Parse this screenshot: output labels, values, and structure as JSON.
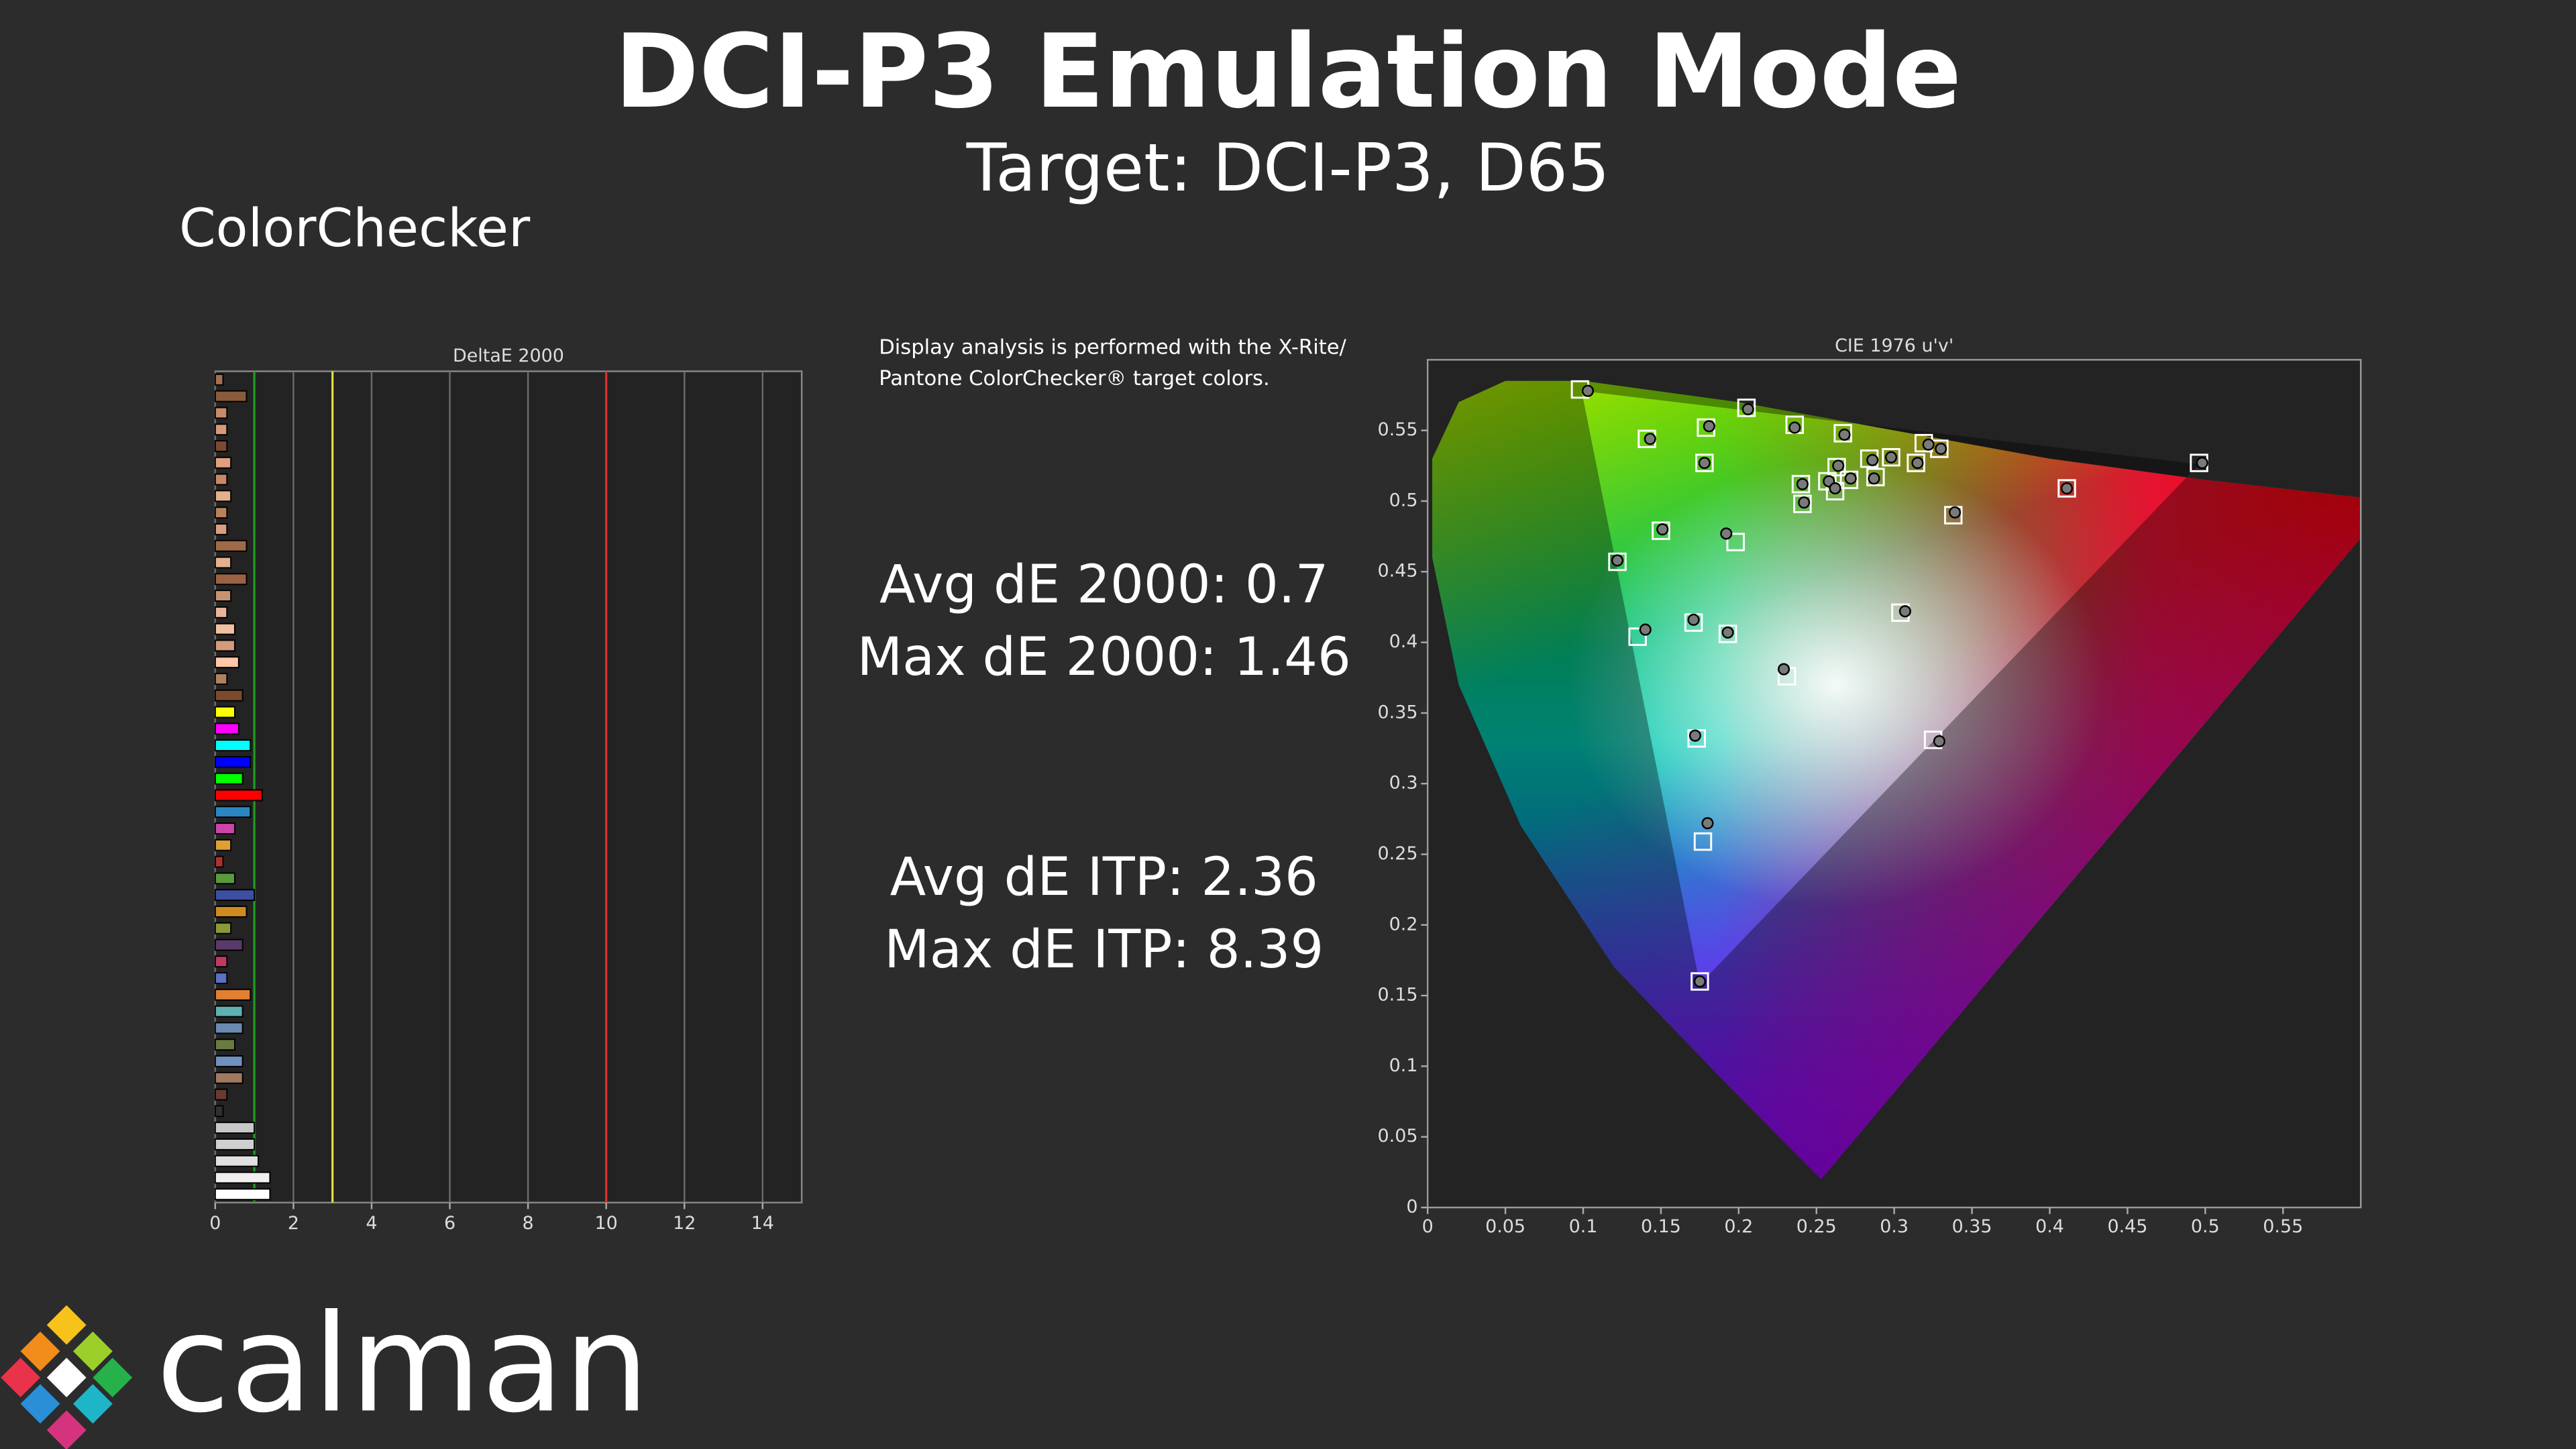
{
  "header": {
    "title": "DCI-P3 Emulation Mode",
    "subtitle": "Target: DCI-P3, D65",
    "section": "ColorChecker"
  },
  "note": [
    "Display analysis is performed with the X-Rite/",
    "Pantone ColorChecker® target colors."
  ],
  "stats": [
    "Avg dE 2000: 0.7",
    "Max dE 2000: 1.46",
    "Avg dE ITP: 2.36",
    "Max dE ITP: 8.39"
  ],
  "logo": "calman",
  "chart_data": [
    {
      "type": "bar",
      "orientation": "horizontal",
      "title": "DeltaE 2000",
      "values": [
        0.2,
        0.8,
        0.3,
        0.3,
        0.3,
        0.4,
        0.3,
        0.4,
        0.3,
        0.3,
        0.8,
        0.4,
        0.8,
        0.4,
        0.3,
        0.5,
        0.5,
        0.6,
        0.3,
        0.7,
        0.5,
        0.6,
        0.9,
        0.9,
        0.7,
        1.2,
        0.9,
        0.5,
        0.4,
        0.2,
        0.5,
        1.0,
        0.8,
        0.4,
        0.7,
        0.3,
        0.3,
        0.9,
        0.7,
        0.7,
        0.5,
        0.7,
        0.7,
        0.3,
        0.2,
        1.0,
        1.0,
        1.1,
        1.4,
        1.4
      ],
      "colors": [
        "#a0714f",
        "#8a5a3c",
        "#c58a6a",
        "#d49a7a",
        "#7a4a32",
        "#e0a080",
        "#c88866",
        "#e3b08e",
        "#b8825e",
        "#d8a080",
        "#a06a48",
        "#e5b090",
        "#9a6244",
        "#c89270",
        "#e8b49a",
        "#f0c0a0",
        "#d29c7c",
        "#ffc8a8",
        "#b08060",
        "#7b4a2c",
        "#ffff00",
        "#ff00ff",
        "#00ffff",
        "#0000ff",
        "#00ff00",
        "#ff0000",
        "#2a86c0",
        "#cc44aa",
        "#e0a030",
        "#b03030",
        "#5a9a3c",
        "#3c4fa0",
        "#d08a20",
        "#8a9a3a",
        "#5a3a6a",
        "#c03a60",
        "#5a70c0",
        "#e08030",
        "#60b0b0",
        "#6a8ab0",
        "#6a7a40",
        "#7090c0",
        "#a07a60",
        "#6a3a30",
        "#303030",
        "#c8c8c8",
        "#d0d0d0",
        "#e0e0e0",
        "#f0f0f0",
        "#ffffff"
      ],
      "xlim": [
        0,
        15
      ],
      "xticks": [
        0,
        2,
        4,
        6,
        8,
        10,
        12,
        14
      ],
      "grid": true,
      "reference_lines": [
        {
          "value": 1,
          "color": "#1f9e1f"
        },
        {
          "value": 3,
          "color": "#e8e040"
        },
        {
          "value": 10,
          "color": "#e03030"
        }
      ]
    },
    {
      "type": "scatter",
      "title": "CIE 1976 u'v'",
      "xlim": [
        0,
        0.6
      ],
      "ylim": [
        0,
        0.6
      ],
      "xticks": [
        0,
        0.05,
        0.1,
        0.15,
        0.2,
        0.25,
        0.3,
        0.35,
        0.4,
        0.45,
        0.5,
        0.55
      ],
      "yticks": [
        0,
        0.05,
        0.1,
        0.15,
        0.2,
        0.25,
        0.3,
        0.35,
        0.4,
        0.45,
        0.5,
        0.55
      ],
      "series": [
        {
          "marker": "square",
          "color": "#ffffff",
          "x": [
            0.098,
            0.141,
            0.179,
            0.178,
            0.205,
            0.236,
            0.267,
            0.319,
            0.329,
            0.298,
            0.314,
            0.284,
            0.24,
            0.263,
            0.257,
            0.271,
            0.288,
            0.241,
            0.262,
            0.496,
            0.411,
            0.338,
            0.15,
            0.198,
            0.122,
            0.135,
            0.171,
            0.193,
            0.231,
            0.304,
            0.173,
            0.325,
            0.177,
            0.175
          ],
          "values": [
            0.579,
            0.544,
            0.552,
            0.527,
            0.566,
            0.554,
            0.548,
            0.541,
            0.537,
            0.531,
            0.527,
            0.53,
            0.512,
            0.524,
            0.514,
            0.515,
            0.517,
            0.498,
            0.507,
            0.527,
            0.509,
            0.49,
            0.479,
            0.471,
            0.457,
            0.404,
            0.414,
            0.406,
            0.376,
            0.421,
            0.332,
            0.331,
            0.259,
            0.16
          ]
        },
        {
          "marker": "circle",
          "color": "#7a7a7a",
          "x": [
            0.103,
            0.143,
            0.181,
            0.178,
            0.206,
            0.236,
            0.268,
            0.322,
            0.33,
            0.298,
            0.315,
            0.286,
            0.241,
            0.264,
            0.258,
            0.272,
            0.287,
            0.242,
            0.262,
            0.498,
            0.411,
            0.339,
            0.151,
            0.192,
            0.122,
            0.14,
            0.171,
            0.193,
            0.229,
            0.307,
            0.172,
            0.329,
            0.18,
            0.175
          ],
          "values": [
            0.578,
            0.544,
            0.553,
            0.527,
            0.565,
            0.552,
            0.547,
            0.54,
            0.537,
            0.531,
            0.527,
            0.529,
            0.512,
            0.525,
            0.514,
            0.516,
            0.516,
            0.499,
            0.509,
            0.527,
            0.509,
            0.492,
            0.48,
            0.477,
            0.458,
            0.409,
            0.416,
            0.407,
            0.381,
            0.422,
            0.334,
            0.33,
            0.272,
            0.16
          ]
        }
      ]
    }
  ]
}
